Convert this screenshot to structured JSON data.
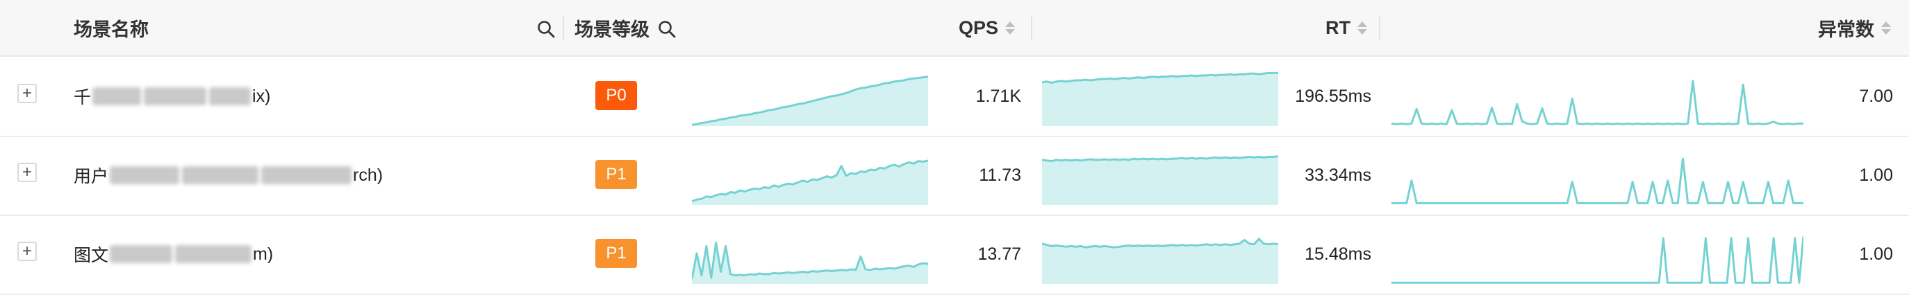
{
  "header": {
    "col_name": "场景名称",
    "col_level": "场景等级",
    "col_qps": "QPS",
    "col_rt": "RT",
    "col_anomaly": "异常数"
  },
  "colors": {
    "p0": "#fa5a0a",
    "p1": "#f7922d",
    "spark_line": "#75d2d2",
    "spark_fill": "#d4f1f1"
  },
  "rows": [
    {
      "expand": "+",
      "name_prefix": "千",
      "name_suffix": "ix)",
      "level": "P0",
      "qps": "1.71K",
      "rt": "196.55ms",
      "anomaly": "7.00",
      "qps_trend": [
        2,
        3,
        5,
        6,
        8,
        9,
        11,
        12,
        14,
        15,
        17,
        18,
        19,
        21,
        22,
        24,
        26,
        27,
        29,
        31,
        32,
        34,
        36,
        37,
        39,
        41,
        43,
        45,
        47,
        49,
        50,
        52,
        54,
        57,
        60,
        62,
        63,
        65,
        66,
        68,
        70,
        71,
        73,
        74,
        75,
        77,
        78,
        79,
        80,
        81
      ],
      "rt_trend": [
        72,
        73,
        71,
        73,
        74,
        73,
        74,
        75,
        75,
        76,
        75,
        76,
        77,
        77,
        78,
        77,
        78,
        79,
        78,
        79,
        80,
        79,
        80,
        81,
        80,
        81,
        81,
        82,
        81,
        82,
        82,
        83,
        82,
        83,
        83,
        84,
        83,
        84,
        84,
        85,
        84,
        85,
        85,
        86,
        86,
        85,
        86,
        87,
        87,
        87
      ],
      "anomaly_trend": [
        4,
        3,
        4,
        3,
        4,
        28,
        4,
        3,
        4,
        3,
        4,
        3,
        26,
        4,
        3,
        4,
        3,
        4,
        3,
        4,
        30,
        4,
        3,
        4,
        3,
        36,
        8,
        4,
        3,
        4,
        29,
        4,
        3,
        4,
        3,
        4,
        45,
        4,
        3,
        4,
        3,
        4,
        3,
        4,
        3,
        4,
        3,
        4,
        3,
        4,
        3,
        4,
        3,
        4,
        3,
        4,
        3,
        4,
        3,
        4,
        74,
        4,
        3,
        4,
        3,
        4,
        3,
        4,
        3,
        4,
        68,
        4,
        3,
        4,
        3,
        4,
        7,
        4,
        3,
        4,
        3,
        4,
        4
      ]
    },
    {
      "expand": "+",
      "name_prefix": "用户",
      "name_suffix": "rch)",
      "level": "P1",
      "qps": "11.73",
      "rt": "33.34ms",
      "anomaly": "1.00",
      "qps_trend": [
        6,
        9,
        10,
        14,
        13,
        16,
        18,
        17,
        21,
        20,
        24,
        22,
        25,
        27,
        26,
        29,
        28,
        32,
        30,
        33,
        35,
        34,
        37,
        40,
        38,
        42,
        41,
        44,
        47,
        45,
        49,
        64,
        48,
        52,
        51,
        55,
        54,
        58,
        57,
        61,
        60,
        64,
        66,
        63,
        67,
        70,
        68,
        72,
        71,
        73
      ],
      "rt_trend": [
        74,
        73,
        72,
        74,
        73,
        74,
        73,
        74,
        73,
        74,
        75,
        74,
        74,
        75,
        74,
        75,
        74,
        75,
        74,
        76,
        75,
        76,
        75,
        76,
        75,
        76,
        75,
        76,
        76,
        77,
        76,
        77,
        76,
        77,
        76,
        77,
        78,
        77,
        78,
        77,
        78,
        77,
        78,
        79,
        78,
        79,
        78,
        79,
        79,
        80
      ],
      "anomaly_trend": [
        3,
        3,
        3,
        3,
        40,
        3,
        3,
        3,
        3,
        3,
        3,
        3,
        3,
        3,
        3,
        3,
        3,
        3,
        3,
        3,
        3,
        3,
        3,
        3,
        3,
        3,
        3,
        3,
        3,
        3,
        3,
        3,
        3,
        3,
        3,
        3,
        38,
        3,
        3,
        3,
        3,
        3,
        3,
        3,
        3,
        3,
        3,
        3,
        38,
        3,
        3,
        3,
        38,
        3,
        3,
        40,
        3,
        3,
        76,
        3,
        3,
        3,
        38,
        3,
        3,
        3,
        3,
        38,
        3,
        3,
        38,
        3,
        3,
        3,
        3,
        38,
        3,
        3,
        3,
        40,
        3,
        3,
        3
      ]
    },
    {
      "expand": "+",
      "name_prefix": "图文",
      "name_suffix": "m)",
      "level": "P1",
      "qps": "13.77",
      "rt": "15.48ms",
      "anomaly": "1.00",
      "qps_trend": [
        8,
        50,
        14,
        62,
        10,
        68,
        20,
        62,
        16,
        14,
        15,
        14,
        16,
        15,
        17,
        16,
        16,
        18,
        17,
        18,
        19,
        18,
        19,
        20,
        19,
        21,
        20,
        21,
        22,
        21,
        22,
        23,
        22,
        24,
        23,
        45,
        24,
        23,
        25,
        24,
        25,
        26,
        25,
        27,
        29,
        30,
        28,
        32,
        34,
        33
      ],
      "rt_trend": [
        66,
        64,
        62,
        63,
        62,
        61,
        62,
        61,
        62,
        60,
        61,
        62,
        61,
        62,
        61,
        60,
        61,
        62,
        63,
        62,
        63,
        62,
        63,
        62,
        63,
        62,
        63,
        64,
        63,
        64,
        63,
        64,
        63,
        64,
        65,
        64,
        65,
        64,
        65,
        64,
        65,
        66,
        72,
        66,
        65,
        74,
        66,
        65,
        66,
        65
      ],
      "anomaly_trend": [
        2,
        2,
        2,
        2,
        2,
        2,
        2,
        2,
        2,
        2,
        2,
        2,
        2,
        2,
        2,
        2,
        2,
        2,
        2,
        2,
        2,
        2,
        2,
        2,
        2,
        2,
        2,
        2,
        2,
        2,
        2,
        2,
        2,
        2,
        2,
        2,
        2,
        2,
        2,
        2,
        2,
        2,
        2,
        2,
        2,
        2,
        2,
        2,
        2,
        2,
        2,
        2,
        2,
        2,
        2,
        2,
        2,
        2,
        2,
        2,
        2,
        2,
        2,
        2,
        75,
        2,
        2,
        2,
        2,
        2,
        2,
        2,
        2,
        2,
        75,
        2,
        2,
        2,
        2,
        2,
        75,
        2,
        2,
        2,
        75,
        2,
        2,
        2,
        2,
        2,
        75,
        2,
        2,
        2,
        2,
        75,
        2,
        78
      ]
    }
  ]
}
